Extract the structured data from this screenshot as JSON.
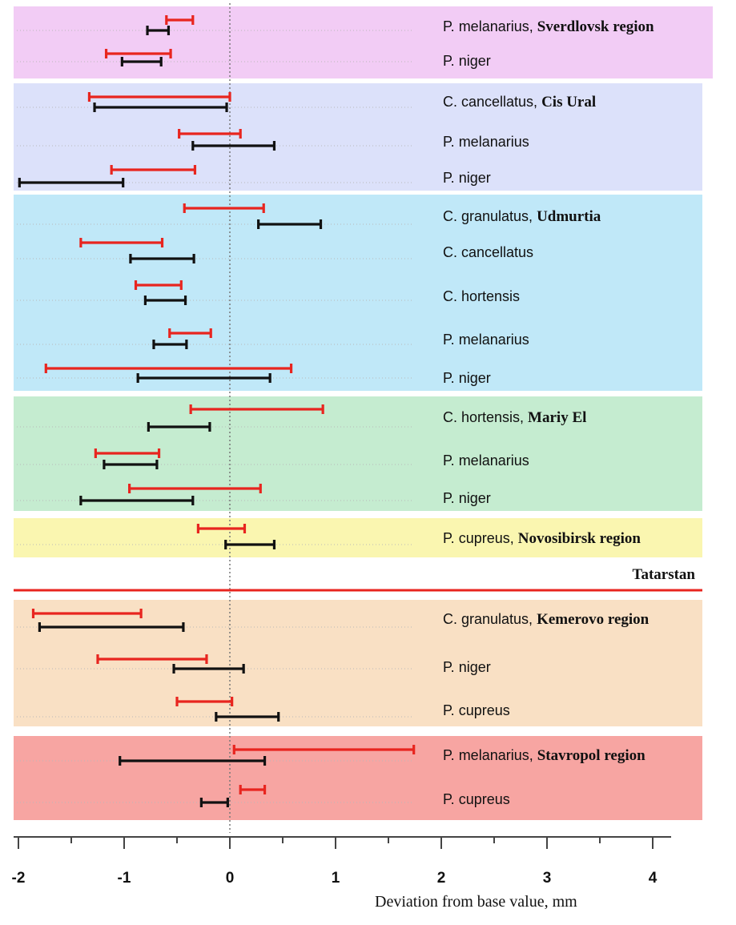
{
  "chart_data": {
    "type": "interval",
    "xlabel": "Deviation from base value, mm",
    "xlim": [
      -2,
      4
    ],
    "xticks": [
      "-2",
      "-1",
      "0",
      "1",
      "2",
      "3",
      "4"
    ],
    "zero_line": true,
    "series_colors": {
      "red": "#e8251f",
      "black": "#111111"
    },
    "separator": {
      "label": "Tatarstan",
      "color": "#e8251f"
    },
    "groups": [
      {
        "region": "Sverdlovsk region",
        "color": "#f2ccf5",
        "rows": [
          {
            "species": "P. melanarius",
            "red": [
              -0.6,
              -0.35
            ],
            "black": [
              -0.78,
              -0.58
            ]
          },
          {
            "species": "P. niger",
            "red": [
              -1.17,
              -0.56
            ],
            "black": [
              -1.02,
              -0.65
            ]
          }
        ]
      },
      {
        "region": "Cis  Ural",
        "color": "#dce1fa",
        "rows": [
          {
            "species": "C. cancellatus",
            "red": [
              -1.33,
              0.0
            ],
            "black": [
              -1.28,
              -0.03
            ]
          },
          {
            "species": "P. melanarius",
            "red": [
              -0.48,
              0.1
            ],
            "black": [
              -0.35,
              0.42
            ]
          },
          {
            "species": "P. niger",
            "red": [
              -1.12,
              -0.33
            ],
            "black": [
              -1.99,
              -1.01
            ]
          }
        ]
      },
      {
        "region": "Udmurtia",
        "color": "#c0e8f8",
        "rows": [
          {
            "species": "C. granulatus",
            "red": [
              -0.43,
              0.32
            ],
            "black": [
              0.27,
              0.86
            ]
          },
          {
            "species": "C. cancellatus",
            "red": [
              -1.41,
              -0.64
            ],
            "black": [
              -0.94,
              -0.34
            ]
          },
          {
            "species": "C. hortensis",
            "red": [
              -0.89,
              -0.46
            ],
            "black": [
              -0.8,
              -0.42
            ]
          },
          {
            "species": "P. melanarius",
            "red": [
              -0.57,
              -0.18
            ],
            "black": [
              -0.72,
              -0.41
            ]
          },
          {
            "species": "P. niger",
            "red": [
              -1.74,
              0.58
            ],
            "black": [
              -0.87,
              0.38
            ]
          }
        ]
      },
      {
        "region": "Mariy El",
        "color": "#c5ecd0",
        "rows": [
          {
            "species": "C. hortensis",
            "red": [
              -0.37,
              0.88
            ],
            "black": [
              -0.77,
              -0.19
            ]
          },
          {
            "species": "P. melanarius",
            "red": [
              -1.27,
              -0.67
            ],
            "black": [
              -1.19,
              -0.69
            ]
          },
          {
            "species": "P. niger",
            "red": [
              -0.95,
              0.29
            ],
            "black": [
              -1.41,
              -0.35
            ]
          }
        ]
      },
      {
        "region": "Novosibirsk region",
        "color": "#faf6b0",
        "rows": [
          {
            "species": "P. cupreus",
            "red": [
              -0.3,
              0.14
            ],
            "black": [
              -0.04,
              0.42
            ]
          }
        ]
      },
      {
        "region": "Kemerovo region",
        "color": "#f9e0c4",
        "rows": [
          {
            "species": "C. granulatus",
            "red": [
              -1.86,
              -0.84
            ],
            "black": [
              -1.8,
              -0.44
            ]
          },
          {
            "species": "P. niger",
            "red": [
              -1.25,
              -0.22
            ],
            "black": [
              -0.53,
              0.13
            ]
          },
          {
            "species": "P. cupreus",
            "red": [
              -0.5,
              0.02
            ],
            "black": [
              -0.13,
              0.46
            ]
          }
        ]
      },
      {
        "region": "Stavropol region",
        "color": "#f7a5a2",
        "rows": [
          {
            "species": "P. melanarius",
            "red": [
              0.04,
              1.74
            ],
            "black": [
              -1.04,
              0.33
            ]
          },
          {
            "species": "P. cupreus",
            "red": [
              0.1,
              0.33
            ],
            "black": [
              -0.27,
              -0.02
            ]
          }
        ]
      }
    ]
  }
}
